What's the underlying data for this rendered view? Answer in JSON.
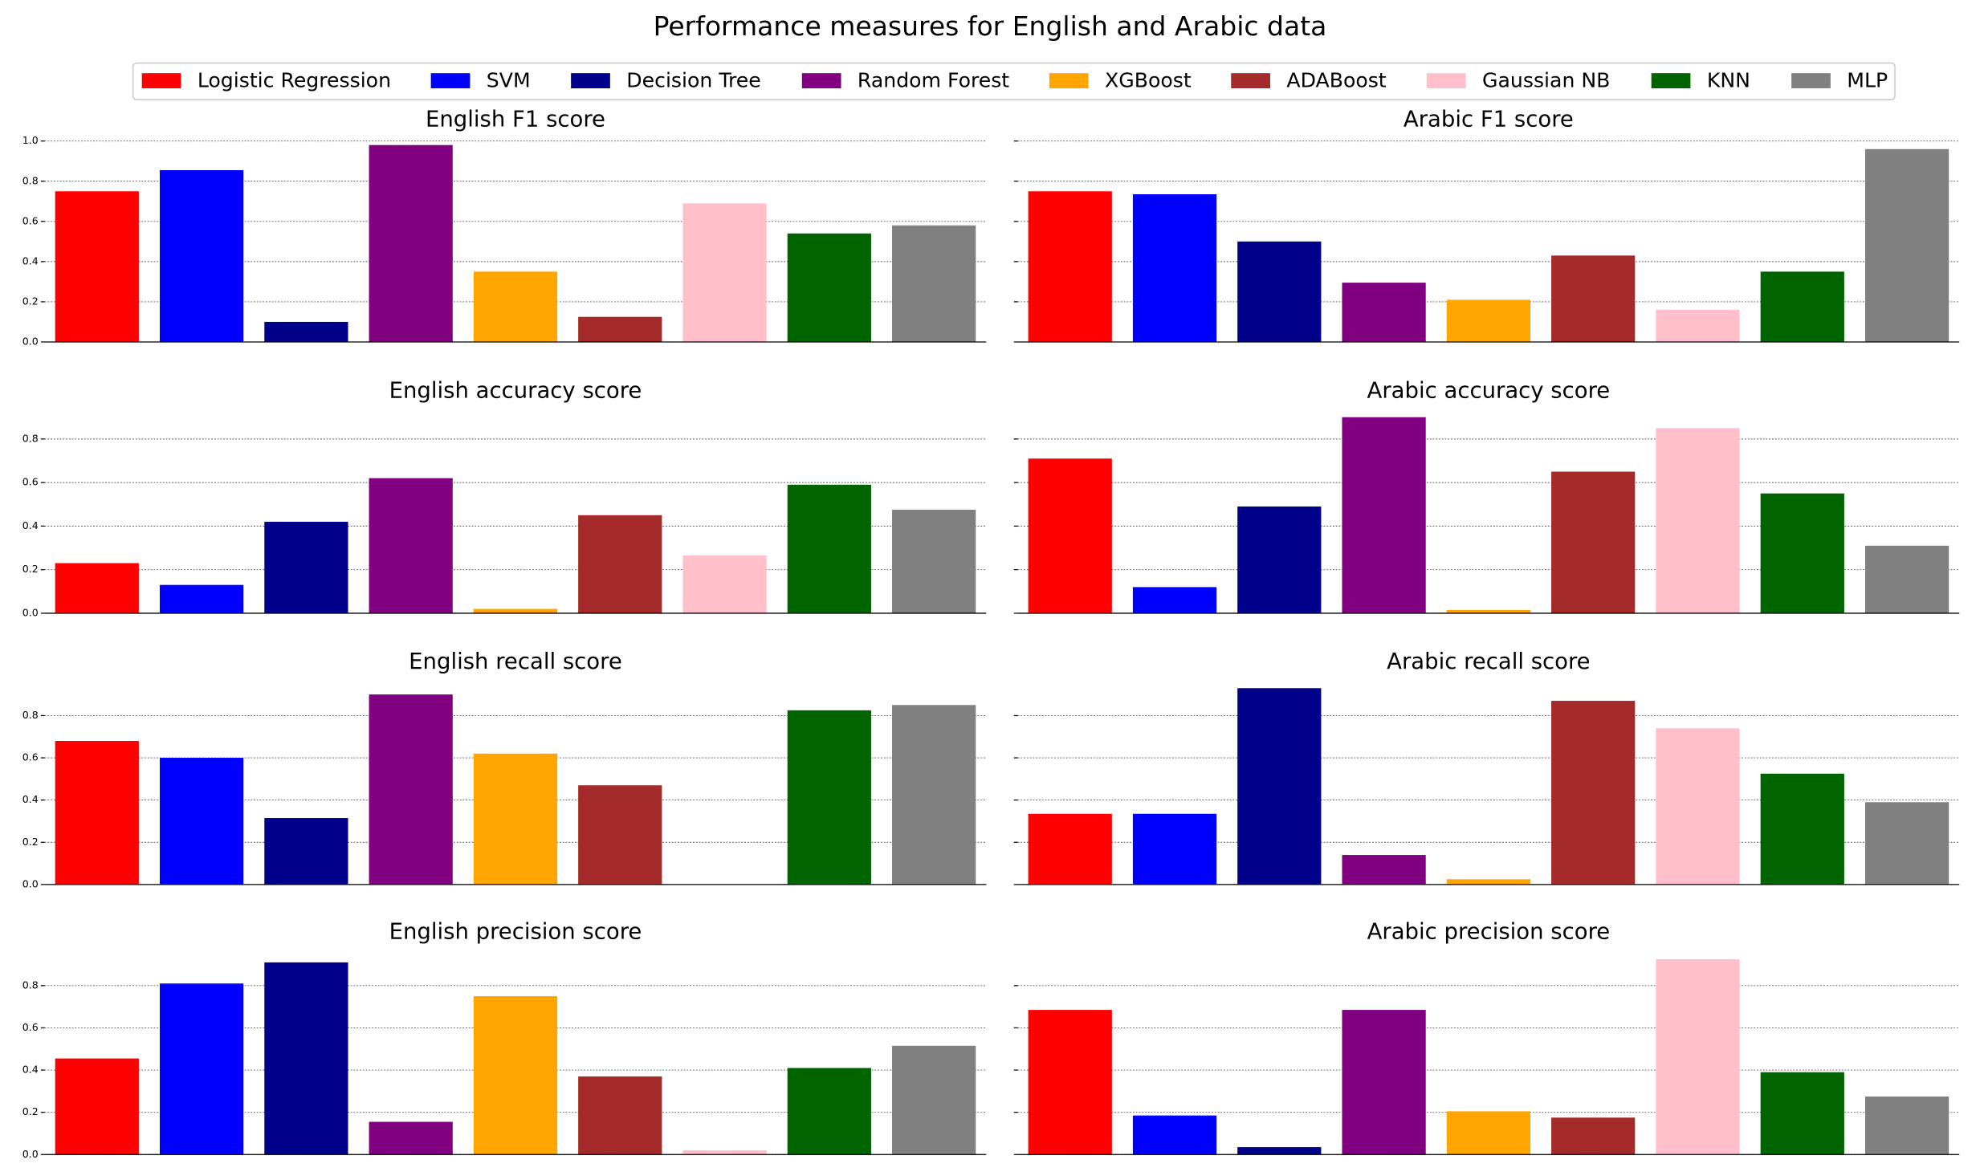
{
  "title": "Performance measures for English and Arabic data",
  "legend": [
    {
      "name": "Logistic Regression",
      "color": "#ff0000"
    },
    {
      "name": "SVM",
      "color": "#0000ff"
    },
    {
      "name": "Decision Tree",
      "color": "#00008b"
    },
    {
      "name": "Random Forest",
      "color": "#800080"
    },
    {
      "name": "XGBoost",
      "color": "#ffa500"
    },
    {
      "name": "ADABoost",
      "color": "#a52a2a"
    },
    {
      "name": "Gaussian NB",
      "color": "#ffc0cb"
    },
    {
      "name": "KNN",
      "color": "#006400"
    },
    {
      "name": "MLP",
      "color": "#808080"
    }
  ],
  "chart_data": [
    {
      "type": "bar",
      "title": "English F1 score",
      "values": [
        0.75,
        0.855,
        0.1,
        0.98,
        0.35,
        0.125,
        0.69,
        0.54,
        0.58
      ],
      "ylim": [
        0,
        1.03
      ],
      "yticks": [
        {
          "value": 0,
          "label": "0.0"
        },
        {
          "value": 0.2,
          "label": "0.2"
        },
        {
          "value": 0.4,
          "label": "0.4"
        },
        {
          "value": 0.6,
          "label": "0.6"
        },
        {
          "value": 0.8,
          "label": "0.8"
        },
        {
          "value": 1,
          "label": "1.0"
        }
      ],
      "grid": true
    },
    {
      "type": "bar",
      "title": "Arabic F1 score",
      "values": [
        0.75,
        0.735,
        0.5,
        0.295,
        0.21,
        0.43,
        0.16,
        0.35,
        0.96
      ],
      "ylim": [
        0,
        1.03
      ],
      "yticks": [
        0,
        0.2,
        0.4,
        0.6,
        0.8,
        1
      ],
      "grid": true
    },
    {
      "type": "bar",
      "title": "English accuracy score",
      "values": [
        0.23,
        0.13,
        0.42,
        0.62,
        0.02,
        0.45,
        0.265,
        0.59,
        0.475
      ],
      "ylim": [
        0,
        0.95
      ],
      "yticks": [
        {
          "value": 0,
          "label": "0.0"
        },
        {
          "value": 0.2,
          "label": "0.2"
        },
        {
          "value": 0.4,
          "label": "0.4"
        },
        {
          "value": 0.6,
          "label": "0.6"
        },
        {
          "value": 0.8,
          "label": "0.8"
        }
      ],
      "grid": true
    },
    {
      "type": "bar",
      "title": "Arabic accuracy score",
      "values": [
        0.71,
        0.12,
        0.49,
        0.9,
        0.015,
        0.65,
        0.85,
        0.55,
        0.31
      ],
      "ylim": [
        0,
        0.95
      ],
      "yticks": [
        0,
        0.2,
        0.4,
        0.6,
        0.8
      ],
      "grid": true
    },
    {
      "type": "bar",
      "title": "English recall score",
      "values": [
        0.68,
        0.6,
        0.315,
        0.9,
        0.62,
        0.47,
        0,
        0.825,
        0.85
      ],
      "ylim": [
        0,
        0.98
      ],
      "yticks": [
        {
          "value": 0,
          "label": "0.0"
        },
        {
          "value": 0.2,
          "label": "0.2"
        },
        {
          "value": 0.4,
          "label": "0.4"
        },
        {
          "value": 0.6,
          "label": "0.6"
        },
        {
          "value": 0.8,
          "label": "0.8"
        }
      ],
      "grid": true
    },
    {
      "type": "bar",
      "title": "Arabic recall score",
      "values": [
        0.335,
        0.335,
        0.93,
        0.14,
        0.025,
        0.87,
        0.74,
        0.525,
        0.39
      ],
      "ylim": [
        0,
        0.98
      ],
      "yticks": [
        0,
        0.2,
        0.4,
        0.6,
        0.8
      ],
      "grid": true
    },
    {
      "type": "bar",
      "title": "English precision score",
      "values": [
        0.455,
        0.81,
        0.91,
        0.155,
        0.75,
        0.37,
        0.02,
        0.41,
        0.515
      ],
      "ylim": [
        0,
        0.98
      ],
      "yticks": [
        {
          "value": 0,
          "label": "0.0"
        },
        {
          "value": 0.2,
          "label": "0.2"
        },
        {
          "value": 0.4,
          "label": "0.4"
        },
        {
          "value": 0.6,
          "label": "0.6"
        },
        {
          "value": 0.8,
          "label": "0.8"
        }
      ],
      "grid": true
    },
    {
      "type": "bar",
      "title": "Arabic precision score",
      "values": [
        0.685,
        0.185,
        0.035,
        0.685,
        0.205,
        0.175,
        0.925,
        0.39,
        0.275
      ],
      "ylim": [
        0,
        0.98
      ],
      "yticks": [
        0,
        0.2,
        0.4,
        0.6,
        0.8
      ],
      "grid": true
    }
  ]
}
